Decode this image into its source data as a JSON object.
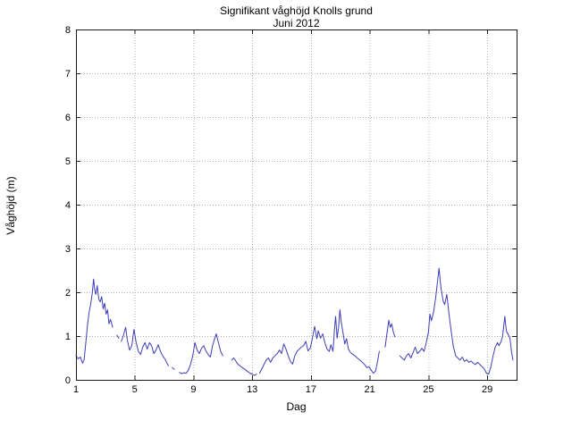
{
  "chart_data": {
    "type": "line",
    "title": "Signifikant våghöjd Knolls grund",
    "subtitle": "Juni 2012",
    "xlabel": "Dag",
    "ylabel": "Våghöjd (m)",
    "xlim": [
      1,
      31
    ],
    "ylim": [
      0,
      8
    ],
    "xticks": [
      1,
      5,
      9,
      13,
      17,
      21,
      25,
      29
    ],
    "yticks": [
      0,
      1,
      2,
      3,
      4,
      5,
      6,
      7,
      8
    ],
    "grid": true,
    "legend": false,
    "line_color": "#3d3db8",
    "axis_color": "#1a1a1a",
    "grid_color": "#b0b0b0",
    "series": [
      {
        "name": "Signifikant våghöjd (m)",
        "points": [
          [
            1.0,
            0.55
          ],
          [
            1.15,
            0.48
          ],
          [
            1.3,
            0.52
          ],
          [
            1.45,
            0.38
          ],
          [
            1.55,
            0.45
          ],
          [
            1.7,
            0.95
          ],
          [
            1.8,
            1.3
          ],
          [
            1.9,
            1.55
          ],
          [
            2.0,
            1.72
          ],
          [
            2.1,
            1.95
          ],
          [
            2.2,
            2.3
          ],
          [
            2.28,
            2.05
          ],
          [
            2.35,
            1.95
          ],
          [
            2.45,
            2.15
          ],
          [
            2.55,
            1.85
          ],
          [
            2.65,
            1.78
          ],
          [
            2.75,
            1.9
          ],
          [
            2.85,
            1.62
          ],
          [
            2.95,
            1.75
          ],
          [
            3.05,
            1.5
          ],
          [
            3.15,
            1.6
          ],
          [
            3.25,
            1.28
          ],
          [
            3.35,
            1.38
          ],
          [
            3.5,
            1.2
          ],
          null,
          [
            3.78,
            1.02
          ],
          [
            3.92,
            0.95
          ],
          null,
          [
            4.08,
            0.88
          ],
          [
            4.22,
            1.0
          ],
          [
            4.38,
            1.2
          ],
          [
            4.5,
            0.9
          ],
          [
            4.65,
            0.68
          ],
          [
            4.8,
            0.78
          ],
          [
            4.95,
            1.15
          ],
          [
            5.1,
            0.85
          ],
          [
            5.25,
            0.65
          ],
          [
            5.4,
            0.58
          ],
          [
            5.55,
            0.75
          ],
          [
            5.7,
            0.85
          ],
          [
            5.85,
            0.7
          ],
          [
            6.0,
            0.85
          ],
          [
            6.15,
            0.78
          ],
          [
            6.3,
            0.6
          ],
          [
            6.45,
            0.68
          ],
          [
            6.6,
            0.8
          ],
          [
            6.75,
            0.65
          ],
          [
            6.9,
            0.55
          ],
          [
            7.05,
            0.48
          ],
          [
            7.2,
            0.38
          ],
          [
            7.3,
            0.32
          ],
          null,
          [
            7.55,
            0.28
          ],
          [
            7.7,
            0.24
          ],
          null,
          [
            8.05,
            0.17
          ],
          [
            8.2,
            0.14
          ],
          [
            8.35,
            0.16
          ],
          [
            8.5,
            0.15
          ],
          [
            8.65,
            0.22
          ],
          [
            8.8,
            0.35
          ],
          [
            8.95,
            0.55
          ],
          [
            9.1,
            0.85
          ],
          [
            9.25,
            0.68
          ],
          [
            9.4,
            0.6
          ],
          [
            9.55,
            0.72
          ],
          [
            9.7,
            0.78
          ],
          [
            9.85,
            0.66
          ],
          [
            10.0,
            0.58
          ],
          [
            10.15,
            0.52
          ],
          [
            10.3,
            0.78
          ],
          [
            10.45,
            0.95
          ],
          [
            10.55,
            1.05
          ],
          [
            10.7,
            0.85
          ],
          [
            10.85,
            0.65
          ],
          [
            11.0,
            0.55
          ],
          null,
          [
            11.6,
            0.45
          ],
          [
            11.75,
            0.5
          ],
          [
            11.9,
            0.42
          ],
          [
            12.05,
            0.35
          ],
          [
            12.25,
            0.3
          ],
          [
            12.45,
            0.25
          ],
          [
            12.65,
            0.2
          ],
          [
            12.85,
            0.15
          ],
          [
            13.0,
            0.13
          ],
          [
            13.15,
            0.1
          ],
          [
            13.3,
            0.13
          ],
          null,
          [
            13.5,
            0.15
          ],
          [
            13.65,
            0.25
          ],
          [
            13.8,
            0.35
          ],
          [
            13.95,
            0.45
          ],
          [
            14.1,
            0.5
          ],
          [
            14.25,
            0.4
          ],
          [
            14.4,
            0.5
          ],
          [
            14.55,
            0.55
          ],
          [
            14.7,
            0.6
          ],
          [
            14.85,
            0.68
          ],
          [
            15.0,
            0.6
          ],
          [
            15.15,
            0.82
          ],
          [
            15.3,
            0.7
          ],
          [
            15.45,
            0.55
          ],
          [
            15.6,
            0.42
          ],
          [
            15.75,
            0.36
          ],
          [
            15.9,
            0.55
          ],
          [
            16.05,
            0.65
          ],
          [
            16.2,
            0.7
          ],
          [
            16.35,
            0.75
          ],
          [
            16.5,
            0.78
          ],
          [
            16.65,
            0.88
          ],
          [
            16.8,
            0.66
          ],
          [
            16.95,
            0.72
          ],
          [
            17.1,
            0.95
          ],
          [
            17.25,
            1.22
          ],
          [
            17.4,
            0.94
          ],
          [
            17.5,
            1.12
          ],
          [
            17.65,
            0.95
          ],
          [
            17.8,
            1.05
          ],
          [
            17.95,
            0.85
          ],
          [
            18.1,
            0.7
          ],
          [
            18.25,
            0.65
          ],
          [
            18.35,
            0.8
          ],
          [
            18.5,
            0.65
          ],
          [
            18.6,
            1.15
          ],
          [
            18.68,
            1.45
          ],
          [
            18.78,
            0.95
          ],
          [
            18.88,
            1.2
          ],
          [
            18.97,
            1.6
          ],
          [
            19.07,
            1.3
          ],
          [
            19.17,
            1.1
          ],
          [
            19.3,
            0.82
          ],
          [
            19.42,
            0.94
          ],
          [
            19.55,
            0.7
          ],
          [
            19.7,
            0.62
          ],
          [
            19.85,
            0.58
          ],
          [
            20.0,
            0.55
          ],
          [
            20.15,
            0.5
          ],
          [
            20.3,
            0.46
          ],
          [
            20.5,
            0.4
          ],
          [
            20.65,
            0.35
          ],
          [
            20.8,
            0.28
          ],
          [
            20.95,
            0.3
          ],
          [
            21.1,
            0.22
          ],
          [
            21.25,
            0.15
          ],
          [
            21.4,
            0.2
          ],
          [
            21.55,
            0.45
          ],
          [
            21.65,
            0.65
          ],
          null,
          [
            22.05,
            0.75
          ],
          [
            22.15,
            1.0
          ],
          [
            22.3,
            1.36
          ],
          [
            22.4,
            1.2
          ],
          [
            22.5,
            1.28
          ],
          [
            22.6,
            1.1
          ],
          [
            22.72,
            0.98
          ],
          null,
          [
            23.05,
            0.55
          ],
          [
            23.2,
            0.5
          ],
          [
            23.35,
            0.45
          ],
          [
            23.5,
            0.55
          ],
          [
            23.65,
            0.6
          ],
          [
            23.8,
            0.5
          ],
          [
            23.95,
            0.62
          ],
          [
            24.1,
            0.75
          ],
          [
            24.25,
            0.6
          ],
          [
            24.4,
            0.65
          ],
          [
            24.55,
            0.72
          ],
          [
            24.7,
            0.65
          ],
          [
            24.85,
            0.85
          ],
          [
            25.0,
            1.1
          ],
          [
            25.1,
            1.5
          ],
          [
            25.2,
            1.35
          ],
          [
            25.35,
            1.55
          ],
          [
            25.5,
            1.9
          ],
          [
            25.6,
            2.2
          ],
          [
            25.72,
            2.55
          ],
          [
            25.85,
            2.1
          ],
          [
            26.0,
            1.8
          ],
          [
            26.1,
            1.72
          ],
          [
            26.25,
            1.95
          ],
          [
            26.4,
            1.5
          ],
          [
            26.55,
            1.1
          ],
          [
            26.7,
            0.75
          ],
          [
            26.85,
            0.55
          ],
          [
            27.0,
            0.5
          ],
          [
            27.15,
            0.45
          ],
          [
            27.3,
            0.52
          ],
          [
            27.45,
            0.42
          ],
          [
            27.6,
            0.46
          ],
          [
            27.75,
            0.4
          ],
          [
            27.9,
            0.43
          ],
          [
            28.05,
            0.38
          ],
          [
            28.2,
            0.35
          ],
          [
            28.35,
            0.4
          ],
          [
            28.5,
            0.35
          ],
          [
            28.65,
            0.3
          ],
          [
            28.8,
            0.25
          ],
          [
            28.95,
            0.15
          ],
          [
            29.1,
            0.13
          ],
          [
            29.25,
            0.3
          ],
          [
            29.4,
            0.55
          ],
          [
            29.55,
            0.75
          ],
          [
            29.7,
            0.85
          ],
          [
            29.8,
            0.78
          ],
          [
            29.95,
            0.88
          ],
          [
            30.05,
            1.0
          ],
          [
            30.2,
            1.45
          ],
          [
            30.3,
            1.12
          ],
          [
            30.45,
            1.02
          ],
          [
            30.55,
            0.95
          ],
          [
            30.65,
            0.65
          ],
          [
            30.75,
            0.45
          ]
        ]
      }
    ]
  }
}
